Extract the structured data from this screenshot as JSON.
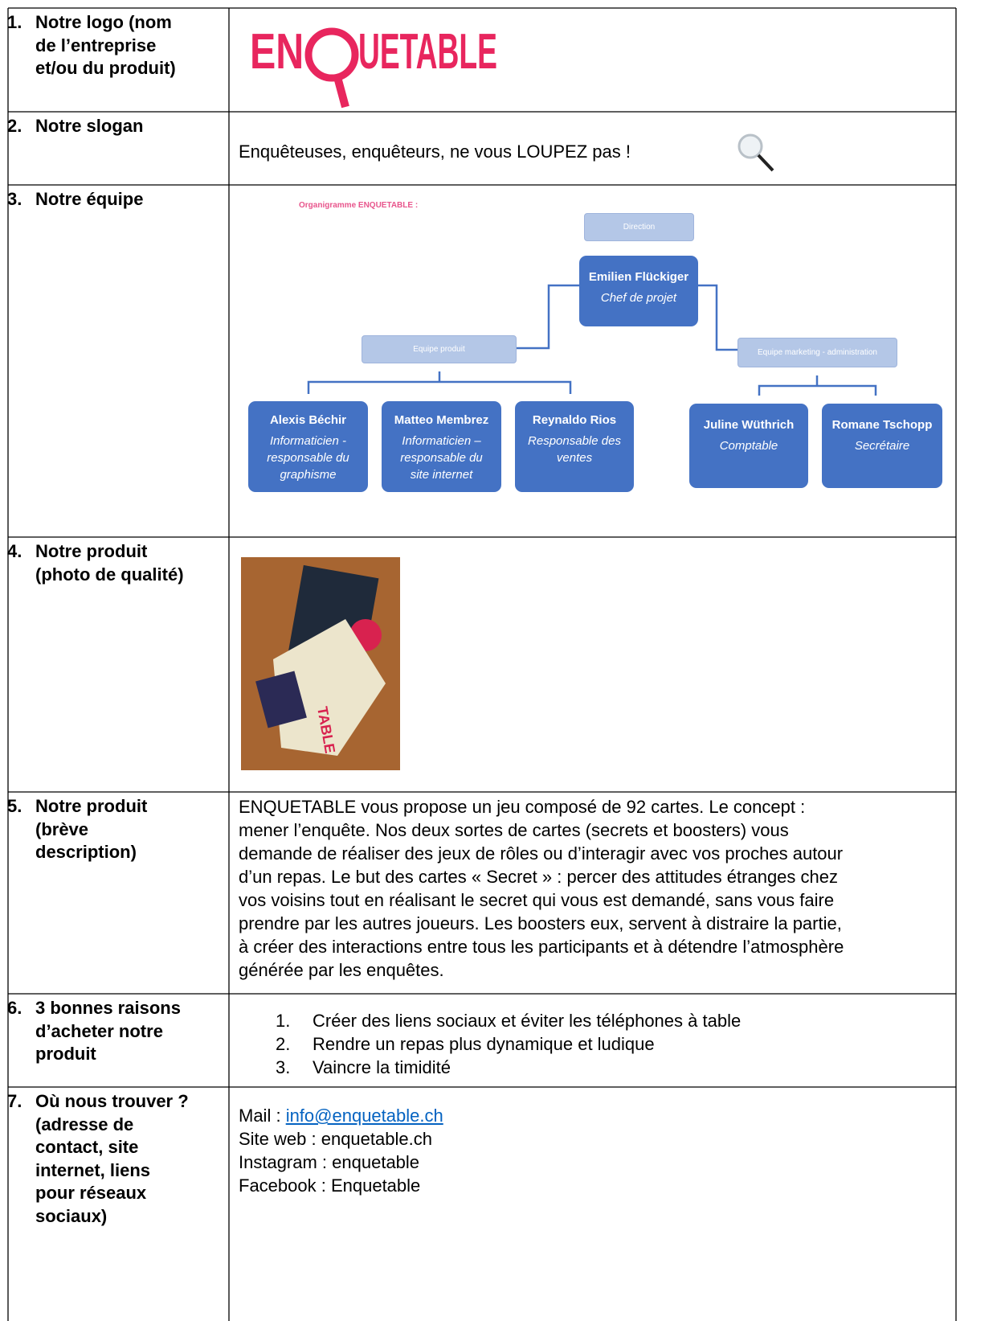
{
  "rows": [
    {
      "number": "1.",
      "label": [
        "Notre logo (nom",
        "de l’entreprise",
        "et/ou du produit)"
      ],
      "logo": {
        "left": "EN",
        "right": "UETABLE"
      }
    },
    {
      "number": "2.",
      "label": [
        "Notre slogan"
      ],
      "slogan": "Enquêteuses, enquêteurs, ne vous LOUPEZ pas !"
    },
    {
      "number": "3.",
      "label": [
        "Notre équipe"
      ],
      "org": {
        "title": "Organigramme ENQUETABLE :",
        "nodes": [
          {
            "title": "Direction"
          },
          {
            "title": "Emilien Flückiger",
            "role": [
              "Chef de projet"
            ]
          },
          {
            "title": "Equipe produit"
          },
          {
            "title": "Equipe marketing - administration"
          },
          {
            "title": "Alexis Béchir",
            "role": [
              "Informaticien -",
              "responsable du",
              "graphisme"
            ]
          },
          {
            "title": "Matteo Membrez",
            "role": [
              "Informaticien –",
              "responsable du",
              "site internet"
            ]
          },
          {
            "title": "Reynaldo Rios",
            "role": [
              "Responsable des",
              "ventes"
            ]
          },
          {
            "title": "Juline Wüthrich",
            "role": [
              "Comptable"
            ]
          },
          {
            "title": "Romane Tschopp",
            "role": [
              "Secrétaire"
            ]
          }
        ]
      }
    },
    {
      "number": "4.",
      "label": [
        "Notre produit",
        "(photo de qualité)"
      ]
    },
    {
      "number": "5.",
      "label": [
        "Notre produit",
        "(brève",
        "description)"
      ],
      "paragraph": [
        "ENQUETABLE vous propose un jeu composé de 92 cartes. Le concept :",
        "mener l’enquête. Nos deux sortes de cartes (secrets et boosters) vous",
        "demande de réaliser des jeux de rôles ou d’interagir avec vos proches autour",
        "d’un repas. Le but des cartes « Secret » : percer des attitudes étranges chez",
        "vos voisins tout en réalisant le secret qui vous est demandé, sans vous faire",
        "prendre par les autres joueurs. Les boosters eux, servent à distraire la partie,",
        "à créer des interactions entre tous les participants et à détendre l’atmosphère",
        "générée par les enquêtes."
      ]
    },
    {
      "number": "6.",
      "label": [
        "3 bonnes raisons",
        "d’acheter notre",
        "produit"
      ],
      "items": [
        {
          "marker": "1.",
          "text": "Créer des liens sociaux et éviter les téléphones à table"
        },
        {
          "marker": "2.",
          "text": "Rendre un repas plus dynamique et ludique"
        },
        {
          "marker": "3.",
          "text": "Vaincre la timidité"
        }
      ]
    },
    {
      "number": "7.",
      "label": [
        "Où nous trouver ?",
        "(adresse de",
        "contact, site",
        "internet, liens",
        "pour réseaux",
        "sociaux)"
      ],
      "contacts": [
        {
          "text": "Mail : ",
          "link": "info@enquetable.ch"
        },
        {
          "text": "Site web : enquetable.ch"
        },
        {
          "text": "Instagram : enquetable"
        },
        {
          "text": "Facebook : Enquetable"
        }
      ]
    }
  ]
}
